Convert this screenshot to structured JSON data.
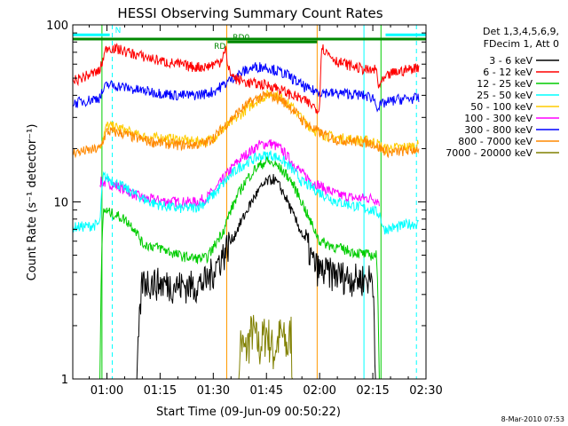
{
  "chart_data": {
    "type": "line",
    "title": "HESSI Observing Summary Count Rates",
    "xlabel": "Start Time (09-Jun-09 00:50:22)",
    "ylabel": "Count Rate (s⁻¹ detector⁻¹)",
    "yscale": "log",
    "ylim": [
      1,
      100
    ],
    "xlim_minutes": [
      50.37,
      150.0
    ],
    "x_ticks": [
      "01:00",
      "01:15",
      "01:30",
      "01:45",
      "02:00",
      "02:15",
      "02:30"
    ],
    "x_tick_minutes": [
      60,
      75,
      90,
      105,
      120,
      135,
      150
    ],
    "y_ticks": [
      "1",
      "10",
      "100"
    ],
    "y_tick_values": [
      1,
      10,
      100
    ],
    "legend": {
      "placement": "right",
      "header": [
        "Det 1,3,4,5,6,9,",
        "FDecim 1, Att 0"
      ]
    },
    "series": [
      {
        "name": "3 - 6 keV",
        "color": "#000000",
        "points": [
          [
            58,
            0
          ],
          [
            60,
            0
          ],
          [
            62,
            0
          ],
          [
            65,
            0
          ],
          [
            68,
            0
          ],
          [
            70,
            3.5
          ],
          [
            75,
            3.4
          ],
          [
            80,
            3.3
          ],
          [
            85,
            3.3
          ],
          [
            88,
            3.5
          ],
          [
            90,
            4.0
          ],
          [
            93,
            5.0
          ],
          [
            96,
            6.5
          ],
          [
            99,
            8.5
          ],
          [
            102,
            11
          ],
          [
            105,
            13
          ],
          [
            107,
            13.5
          ],
          [
            109,
            12
          ],
          [
            111,
            10
          ],
          [
            113,
            8
          ],
          [
            116,
            6
          ],
          [
            118,
            4.5
          ],
          [
            120,
            4.0
          ],
          [
            125,
            3.8
          ],
          [
            130,
            3.6
          ],
          [
            135,
            3.6
          ],
          [
            136,
            0
          ],
          [
            140,
            0
          ]
        ]
      },
      {
        "name": "6 - 12 keV",
        "color": "#ff0000",
        "points": [
          [
            50.4,
            48
          ],
          [
            58,
            55
          ],
          [
            60,
            75
          ],
          [
            64,
            72
          ],
          [
            68,
            68
          ],
          [
            72,
            65
          ],
          [
            76,
            62
          ],
          [
            80,
            60
          ],
          [
            84,
            58
          ],
          [
            88,
            58
          ],
          [
            92,
            62
          ],
          [
            93.5,
            75
          ],
          [
            94,
            57
          ],
          [
            96,
            50
          ],
          [
            100,
            47
          ],
          [
            104,
            46
          ],
          [
            107,
            45
          ],
          [
            110,
            42
          ],
          [
            115,
            38
          ],
          [
            118,
            35
          ],
          [
            120,
            33
          ],
          [
            120.5,
            75
          ],
          [
            122,
            70
          ],
          [
            125,
            62
          ],
          [
            130,
            58
          ],
          [
            134,
            55
          ],
          [
            136,
            56
          ],
          [
            136.5,
            45
          ],
          [
            140,
            53
          ],
          [
            145,
            56
          ],
          [
            148,
            58
          ]
        ]
      },
      {
        "name": "12 - 25 keV",
        "color": "#00cc00",
        "points": [
          [
            58,
            0
          ],
          [
            59,
            9
          ],
          [
            62,
            8.5
          ],
          [
            65,
            8
          ],
          [
            68,
            7
          ],
          [
            70,
            5.8
          ],
          [
            75,
            5.5
          ],
          [
            80,
            5
          ],
          [
            85,
            4.8
          ],
          [
            88,
            4.8
          ],
          [
            90,
            5.5
          ],
          [
            93,
            7
          ],
          [
            96,
            10
          ],
          [
            99,
            13
          ],
          [
            102,
            15.5
          ],
          [
            105,
            17
          ],
          [
            108,
            16
          ],
          [
            111,
            14
          ],
          [
            114,
            11
          ],
          [
            117,
            8
          ],
          [
            120,
            6
          ],
          [
            125,
            5.5
          ],
          [
            130,
            5.2
          ],
          [
            134,
            5
          ],
          [
            136,
            5
          ],
          [
            137,
            0
          ],
          [
            140,
            0
          ]
        ]
      },
      {
        "name": "25 - 50 keV",
        "color": "#00ffff",
        "points": [
          [
            50.4,
            7.2
          ],
          [
            55,
            7.3
          ],
          [
            58,
            7.5
          ],
          [
            59,
            14
          ],
          [
            62,
            13
          ],
          [
            65,
            12
          ],
          [
            68,
            11
          ],
          [
            72,
            10
          ],
          [
            76,
            9.5
          ],
          [
            80,
            9.2
          ],
          [
            85,
            9.3
          ],
          [
            88,
            10
          ],
          [
            91,
            11.5
          ],
          [
            94,
            13.5
          ],
          [
            97,
            15.5
          ],
          [
            100,
            17
          ],
          [
            103,
            18
          ],
          [
            106,
            18.5
          ],
          [
            109,
            17.5
          ],
          [
            112,
            15.5
          ],
          [
            115,
            13
          ],
          [
            118,
            12
          ],
          [
            121,
            11
          ],
          [
            125,
            10
          ],
          [
            130,
            9.5
          ],
          [
            135,
            9
          ],
          [
            137,
            8.5
          ],
          [
            138,
            7
          ],
          [
            142,
            7.2
          ],
          [
            145,
            7.5
          ],
          [
            148,
            7.5
          ]
        ]
      },
      {
        "name": "50 - 100 keV",
        "color": "#ffcc00",
        "points": [
          [
            58,
            20
          ],
          [
            60,
            27
          ],
          [
            64,
            26
          ],
          [
            68,
            24
          ],
          [
            72,
            23
          ],
          [
            76,
            23
          ],
          [
            80,
            22.5
          ],
          [
            84,
            22
          ],
          [
            88,
            22
          ],
          [
            90,
            23
          ],
          [
            93,
            26
          ],
          [
            96,
            29
          ],
          [
            99,
            33
          ],
          [
            102,
            37
          ],
          [
            105,
            40
          ],
          [
            107,
            41
          ],
          [
            109,
            39
          ],
          [
            111,
            36
          ],
          [
            113,
            33
          ],
          [
            116,
            28
          ],
          [
            119,
            25
          ],
          [
            121,
            24
          ],
          [
            125,
            23
          ],
          [
            130,
            22.5
          ],
          [
            135,
            22
          ],
          [
            137,
            21
          ],
          [
            138,
            20
          ],
          [
            145,
            20.5
          ],
          [
            148,
            21
          ]
        ]
      },
      {
        "name": "100 - 300 keV",
        "color": "#ff00ff",
        "points": [
          [
            58,
            13
          ],
          [
            62,
            12.5
          ],
          [
            66,
            11.5
          ],
          [
            70,
            10.5
          ],
          [
            75,
            10.2
          ],
          [
            80,
            10
          ],
          [
            85,
            10
          ],
          [
            88,
            10.5
          ],
          [
            91,
            12
          ],
          [
            94,
            14.5
          ],
          [
            97,
            17
          ],
          [
            100,
            19
          ],
          [
            103,
            21
          ],
          [
            106,
            21.5
          ],
          [
            109,
            20
          ],
          [
            112,
            17
          ],
          [
            115,
            14.5
          ],
          [
            118,
            13
          ],
          [
            121,
            12
          ],
          [
            125,
            11
          ],
          [
            130,
            10.5
          ],
          [
            135,
            10.5
          ],
          [
            137,
            10
          ]
        ]
      },
      {
        "name": "300 - 800 keV",
        "color": "#0000ff",
        "points": [
          [
            50.4,
            36
          ],
          [
            56,
            38
          ],
          [
            58,
            39
          ],
          [
            60,
            46
          ],
          [
            64,
            45
          ],
          [
            68,
            43
          ],
          [
            72,
            42
          ],
          [
            76,
            41
          ],
          [
            80,
            40
          ],
          [
            84,
            40
          ],
          [
            88,
            41
          ],
          [
            90,
            42
          ],
          [
            93,
            46
          ],
          [
            96,
            51
          ],
          [
            99,
            55
          ],
          [
            102,
            58
          ],
          [
            105,
            58
          ],
          [
            108,
            55
          ],
          [
            111,
            52
          ],
          [
            114,
            47
          ],
          [
            117,
            43
          ],
          [
            120,
            42
          ],
          [
            124,
            41
          ],
          [
            128,
            41
          ],
          [
            132,
            40
          ],
          [
            135,
            39
          ],
          [
            136.5,
            34
          ],
          [
            138,
            36
          ],
          [
            142,
            38
          ],
          [
            148,
            38.5
          ]
        ]
      },
      {
        "name": "800 - 7000 keV",
        "color": "#ff8800",
        "points": [
          [
            50.4,
            19
          ],
          [
            55,
            19.5
          ],
          [
            58,
            20
          ],
          [
            60,
            25
          ],
          [
            64,
            24.5
          ],
          [
            68,
            23
          ],
          [
            72,
            22
          ],
          [
            76,
            21.5
          ],
          [
            80,
            21
          ],
          [
            84,
            21
          ],
          [
            88,
            21.5
          ],
          [
            91,
            24
          ],
          [
            94,
            28
          ],
          [
            97,
            32
          ],
          [
            100,
            36
          ],
          [
            103,
            39
          ],
          [
            106,
            40
          ],
          [
            109,
            38
          ],
          [
            112,
            34
          ],
          [
            115,
            29
          ],
          [
            118,
            26
          ],
          [
            121,
            24
          ],
          [
            125,
            22.5
          ],
          [
            130,
            22
          ],
          [
            135,
            21.5
          ],
          [
            137,
            20
          ],
          [
            140,
            19
          ],
          [
            145,
            19.5
          ],
          [
            148,
            20
          ]
        ]
      },
      {
        "name": "7000 - 20000 keV",
        "color": "#808000",
        "points": [
          [
            50.4,
            0
          ],
          [
            97,
            0
          ],
          [
            97.5,
            1.7
          ],
          [
            99,
            1.4
          ],
          [
            101,
            1.9
          ],
          [
            103,
            1.5
          ],
          [
            105,
            1.9
          ],
          [
            107,
            1.4
          ],
          [
            109,
            1.8
          ],
          [
            111,
            1.5
          ],
          [
            112,
            1.9
          ],
          [
            112.5,
            0
          ],
          [
            148,
            0
          ]
        ]
      }
    ],
    "vertical_lines": [
      {
        "minutes": 58.6,
        "color": "#00cc00",
        "style": "solid"
      },
      {
        "minutes": 61.5,
        "color": "#00ffff",
        "style": "dashed"
      },
      {
        "minutes": 93.8,
        "color": "#ff9900",
        "style": "solid"
      },
      {
        "minutes": 119.3,
        "color": "#ff9900",
        "style": "solid"
      },
      {
        "minutes": 132.5,
        "color": "#00ffff",
        "style": "solid"
      },
      {
        "minutes": 137.3,
        "color": "#00cc00",
        "style": "solid"
      },
      {
        "minutes": 147.3,
        "color": "#00ffff",
        "style": "dashed"
      }
    ],
    "flags": [
      {
        "label": "N",
        "color": "#00ffff",
        "start": 50.4,
        "end": 60.8,
        "level": 92
      },
      {
        "label": "",
        "color": "#00ffff",
        "start": 138.6,
        "end": 150.0,
        "level": 92
      },
      {
        "label": "RD",
        "color": "#008800",
        "start": 50.4,
        "end": 150.0,
        "level": 80
      },
      {
        "label": "RD0",
        "color": "#008800",
        "start": 94.0,
        "end": 119.3,
        "level": 72
      }
    ]
  },
  "footer": {
    "timestamp": "8-Mar-2010 07:53"
  }
}
